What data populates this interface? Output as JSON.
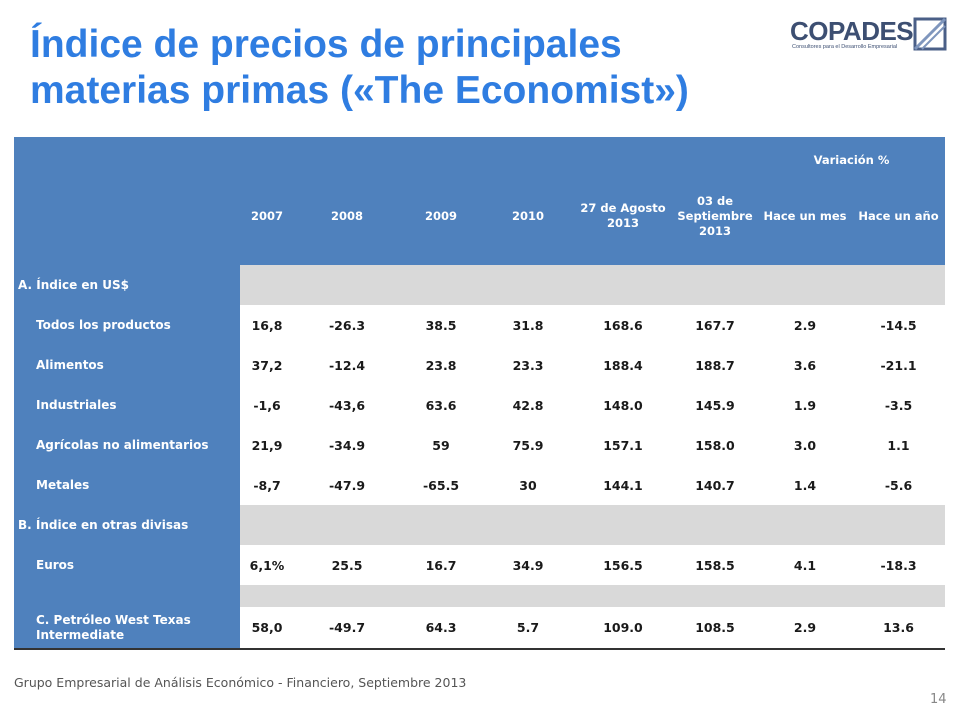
{
  "header": {
    "title_lines": [
      "Índice de precios de principales",
      "materias primas («The Economist»)"
    ],
    "logo": {
      "name": "COPADES",
      "tagline": "Consultores para el Desarrollo Empresarial"
    }
  },
  "table": {
    "group_header": "Variación %",
    "columns": [
      "2007",
      "2008",
      "2009",
      "2010",
      "27 de Agosto 2013",
      "03 de Septiembre 2013",
      "Hace un mes",
      "Hace un año"
    ],
    "rows": [
      {
        "label": "A. Índice en US$"
      },
      {
        "label": "Todos los productos",
        "cells": [
          "16,8",
          "-26.3",
          "38.5",
          "31.8",
          "168.6",
          "167.7",
          "2.9",
          "-14.5"
        ]
      },
      {
        "label": "Alimentos",
        "cells": [
          "37,2",
          "-12.4",
          "23.8",
          "23.3",
          "188.4",
          "188.7",
          "3.6",
          "-21.1"
        ]
      },
      {
        "label": "Industriales",
        "cells": [
          "-1,6",
          "-43,6",
          "63.6",
          "42.8",
          "148.0",
          "145.9",
          "1.9",
          "-3.5"
        ]
      },
      {
        "label": "Agrícolas no alimentarios",
        "cells": [
          "21,9",
          "-34.9",
          "59",
          "75.9",
          "157.1",
          "158.0",
          "3.0",
          "1.1"
        ]
      },
      {
        "label": "Metales",
        "cells": [
          "-8,7",
          "-47.9",
          "-65.5",
          "30",
          "144.1",
          "140.7",
          "1.4",
          "-5.6"
        ]
      },
      {
        "label": "B. Índice en otras divisas"
      },
      {
        "label": "Euros",
        "cells": [
          "6,1%",
          "25.5",
          "16.7",
          "34.9",
          "156.5",
          "158.5",
          "4.1",
          "-18.3"
        ]
      },
      {
        "label": "C. Petróleo West Texas Intermediate",
        "cells": [
          "58,0",
          "-49.7",
          "64.3",
          "5.7",
          "109.0",
          "108.5",
          "2.9",
          "13.6"
        ]
      }
    ]
  },
  "footer": {
    "text": "Grupo Empresarial de Análisis Económico - Financiero, Septiembre 2013",
    "page": "14"
  }
}
